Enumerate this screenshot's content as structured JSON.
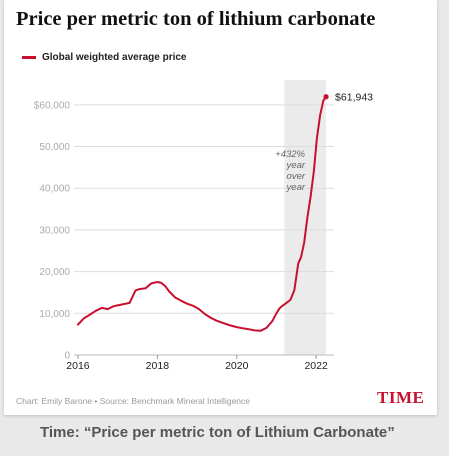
{
  "header": {
    "title": "Price per metric ton of lithium carbonate"
  },
  "footer": {
    "source": "Chart: Emily Barone • Source: Benchmark Mineral Intelligence",
    "brand": "TIME"
  },
  "caption": "Time: “Price per metric ton of Lithium Carbonate”",
  "colors": {
    "line": "#c8102e",
    "highlight_band": "#ebebeb",
    "brand": "#c8102e"
  },
  "chart_data": {
    "type": "line",
    "title": "Price per metric ton of lithium carbonate",
    "xlabel": "",
    "ylabel": "",
    "ylim": [
      0,
      65000
    ],
    "xlim": [
      2015.9,
      2022.45
    ],
    "grid": true,
    "legend_placement": "top-left",
    "y_ticks": [
      0,
      10000,
      20000,
      30000,
      40000,
      50000,
      60000
    ],
    "y_tick_labels": [
      "0",
      "10,000",
      "20,000",
      "30,000",
      "40,000",
      "50,000",
      "$60,000"
    ],
    "x_ticks": [
      2016,
      2018,
      2020,
      2022
    ],
    "x_tick_labels": [
      "2016",
      "2018",
      "2020",
      "2022"
    ],
    "highlight_band": [
      2021.2,
      2022.25
    ],
    "series": [
      {
        "name": "Global weighted average price",
        "x": [
          2016.0,
          2016.15,
          2016.3,
          2016.45,
          2016.6,
          2016.75,
          2016.9,
          2017.0,
          2017.15,
          2017.3,
          2017.45,
          2017.55,
          2017.7,
          2017.85,
          2018.0,
          2018.1,
          2018.2,
          2018.3,
          2018.45,
          2018.6,
          2018.75,
          2018.9,
          2019.05,
          2019.2,
          2019.35,
          2019.5,
          2019.65,
          2019.8,
          2020.0,
          2020.15,
          2020.3,
          2020.45,
          2020.6,
          2020.75,
          2020.9,
          2021.0,
          2021.08,
          2021.15,
          2021.25,
          2021.35,
          2021.45,
          2021.55,
          2021.62,
          2021.7,
          2021.78,
          2021.86,
          2021.94,
          2022.02,
          2022.1,
          2022.18,
          2022.25
        ],
        "values": [
          7300,
          8800,
          9700,
          10600,
          11300,
          11000,
          11700,
          11900,
          12200,
          12500,
          15500,
          15800,
          16000,
          17200,
          17500,
          17300,
          16500,
          15200,
          13800,
          13000,
          12300,
          11800,
          11000,
          9800,
          8900,
          8200,
          7700,
          7200,
          6700,
          6400,
          6200,
          5900,
          5800,
          6500,
          8200,
          10000,
          11200,
          11800,
          12500,
          13200,
          15500,
          22000,
          23500,
          27000,
          33000,
          38000,
          44000,
          52000,
          57500,
          61000,
          61943
        ]
      }
    ],
    "annotations": {
      "end_label": "$61,943",
      "yoy_lines": [
        "+432%",
        "year",
        "over",
        "year"
      ]
    }
  }
}
